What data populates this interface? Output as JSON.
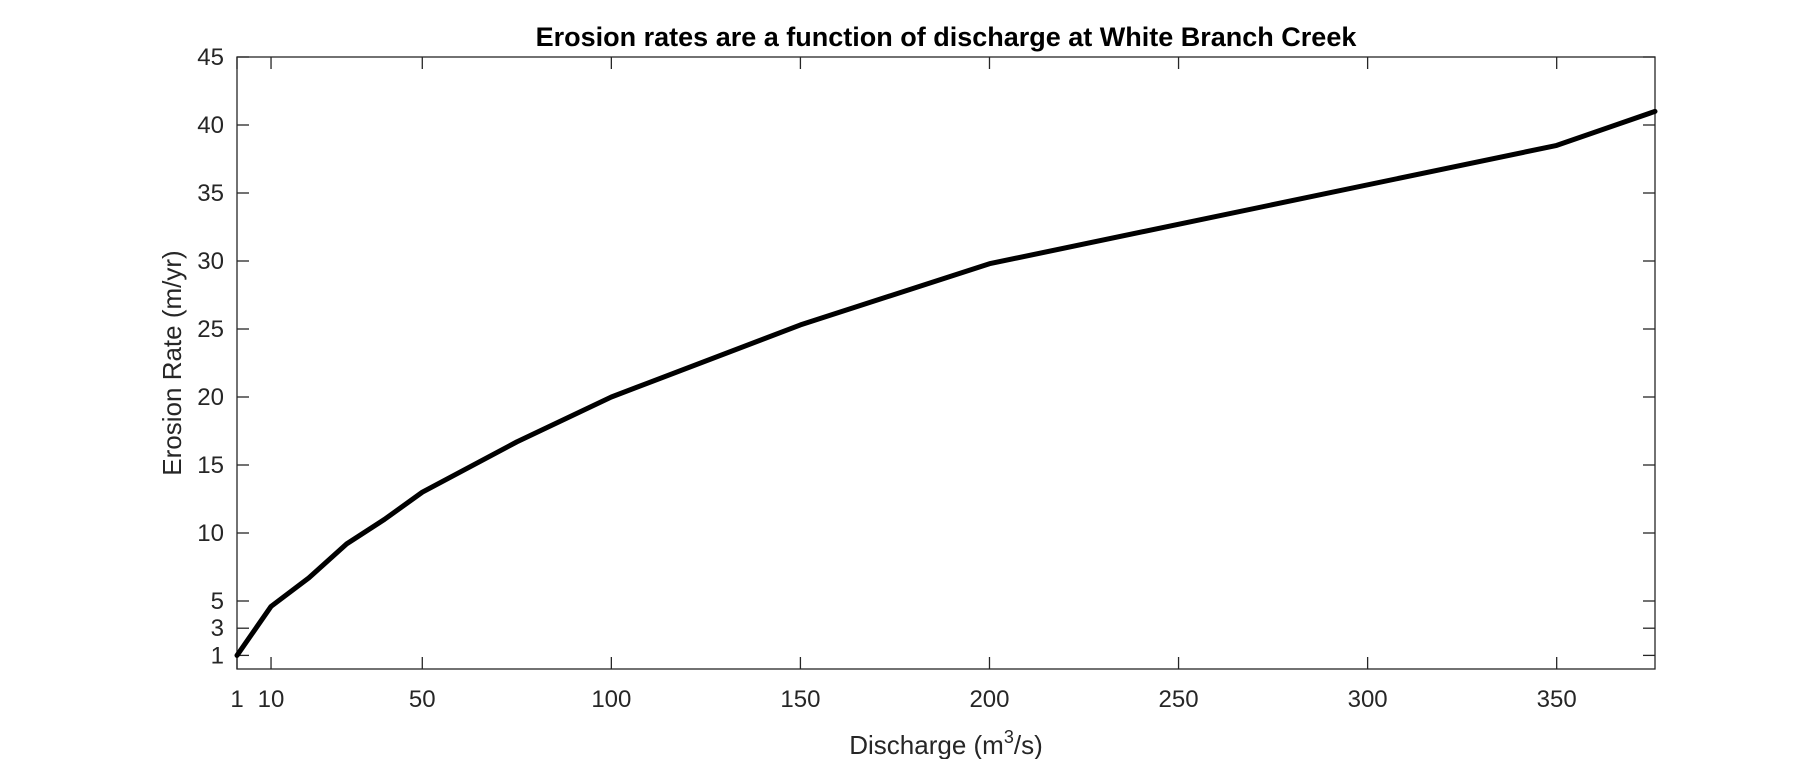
{
  "chart_data": {
    "type": "line",
    "title": "Erosion rates are a function of discharge at White Branch Creek",
    "xlabel": {
      "prefix": "Discharge (m",
      "superscript": "3",
      "suffix": "/s)"
    },
    "ylabel": "Erosion Rate (m/yr)",
    "xlim": [
      1,
      376
    ],
    "ylim": [
      0,
      45
    ],
    "xticks": [
      1,
      10,
      50,
      100,
      150,
      200,
      250,
      300,
      350
    ],
    "yticks": [
      1,
      3,
      5,
      10,
      15,
      20,
      25,
      30,
      35,
      40,
      45
    ],
    "grid": false,
    "line_color": "#000000",
    "series": [
      {
        "x": [
          1,
          10,
          20,
          30,
          40,
          50,
          75,
          100,
          150,
          200,
          350,
          376
        ],
        "y": [
          1,
          4.6,
          6.7,
          9.2,
          11.0,
          13.0,
          16.7,
          20.0,
          25.3,
          29.8,
          38.5,
          41.0
        ]
      }
    ]
  }
}
